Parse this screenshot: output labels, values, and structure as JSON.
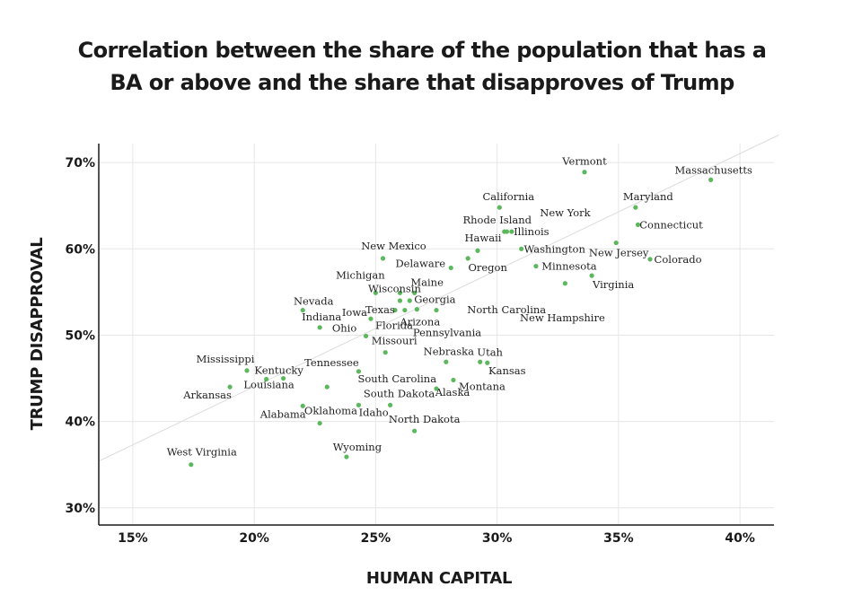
{
  "colors": {
    "point": "#5cb85c",
    "grid": "#e6e6e6",
    "trend": "#dcdcdc",
    "axis": "#1a1a1a"
  },
  "chart_data": {
    "type": "scatter",
    "title": [
      "Correlation between the share of the population that has a",
      "BA or above and the share that disapproves of Trump"
    ],
    "xlabel": "HUMAN CAPITAL",
    "ylabel": "TRUMP DISAPPROVAL",
    "xlim": [
      13.6,
      41.4
    ],
    "ylim": [
      28.0,
      72.2
    ],
    "xticks": [
      15,
      20,
      25,
      30,
      35,
      40
    ],
    "xtick_labels": [
      "15%",
      "20%",
      "25%",
      "30%",
      "35%",
      "40%"
    ],
    "yticks": [
      30,
      40,
      50,
      60,
      70
    ],
    "ytick_labels": [
      "30%",
      "40%",
      "50%",
      "60%",
      "70%"
    ],
    "trendline": [
      [
        13.6,
        35.4
      ],
      [
        41.6,
        73.2
      ]
    ],
    "points": [
      {
        "name": "Massachusetts",
        "x": 38.8,
        "y": 68.0
      },
      {
        "name": "Vermont",
        "x": 33.6,
        "y": 68.9
      },
      {
        "name": "Maryland",
        "x": 35.7,
        "y": 64.8
      },
      {
        "name": "Connecticut",
        "x": 35.8,
        "y": 62.8
      },
      {
        "name": "California",
        "x": 30.1,
        "y": 64.8
      },
      {
        "name": "New York",
        "x": 30.4,
        "y": 62.0
      },
      {
        "name": "Illinois",
        "x": 30.6,
        "y": 62.0
      },
      {
        "name": "Rhode Island",
        "x": 30.3,
        "y": 62.0
      },
      {
        "name": "Hawaii",
        "x": 29.2,
        "y": 59.8
      },
      {
        "name": "Washington",
        "x": 31.0,
        "y": 60.0
      },
      {
        "name": "New Jersey",
        "x": 34.9,
        "y": 60.7
      },
      {
        "name": "Colorado",
        "x": 36.3,
        "y": 58.8
      },
      {
        "name": "Oregon",
        "x": 28.8,
        "y": 58.9
      },
      {
        "name": "Delaware",
        "x": 28.1,
        "y": 57.8
      },
      {
        "name": "Minnesota",
        "x": 31.6,
        "y": 58.0
      },
      {
        "name": "Virginia",
        "x": 33.9,
        "y": 56.9
      },
      {
        "name": "New Hampshire",
        "x": 32.8,
        "y": 56.0
      },
      {
        "name": "New Mexico",
        "x": 25.3,
        "y": 58.9
      },
      {
        "name": "Michigan",
        "x": 25.0,
        "y": 54.9
      },
      {
        "name": "Wisconsin",
        "x": 26.0,
        "y": 54.9
      },
      {
        "name": "Maine",
        "x": 26.6,
        "y": 54.9
      },
      {
        "name": "Texas",
        "x": 26.0,
        "y": 54.0
      },
      {
        "name": "North Carolina",
        "x": 26.4,
        "y": 54.0
      },
      {
        "name": "Florida",
        "x": 25.8,
        "y": 52.9
      },
      {
        "name": "Arizona",
        "x": 26.2,
        "y": 52.9
      },
      {
        "name": "Georgia",
        "x": 26.7,
        "y": 53.0
      },
      {
        "name": "Pennsylvania",
        "x": 27.5,
        "y": 52.9
      },
      {
        "name": "Nevada",
        "x": 22.0,
        "y": 52.9
      },
      {
        "name": "Iowa",
        "x": 24.8,
        "y": 51.9
      },
      {
        "name": "Indiana",
        "x": 22.7,
        "y": 50.9
      },
      {
        "name": "Ohio",
        "x": 24.6,
        "y": 49.9
      },
      {
        "name": "Missouri",
        "x": 25.4,
        "y": 48.0
      },
      {
        "name": "Nebraska",
        "x": 27.9,
        "y": 46.9
      },
      {
        "name": "Utah",
        "x": 29.3,
        "y": 46.9
      },
      {
        "name": "Kansas",
        "x": 29.6,
        "y": 46.8
      },
      {
        "name": "Mississippi",
        "x": 19.7,
        "y": 45.9
      },
      {
        "name": "Kentucky",
        "x": 20.5,
        "y": 44.9
      },
      {
        "name": "Louisiana",
        "x": 21.2,
        "y": 45.0
      },
      {
        "name": "Tennessee",
        "x": 24.3,
        "y": 45.8
      },
      {
        "name": "South Carolina",
        "x": 23.0,
        "y": 44.0
      },
      {
        "name": "Montana",
        "x": 28.2,
        "y": 44.8
      },
      {
        "name": "Alaska",
        "x": 27.5,
        "y": 43.8
      },
      {
        "name": "Arkansas",
        "x": 19.0,
        "y": 44.0
      },
      {
        "name": "Alabama",
        "x": 22.0,
        "y": 41.8
      },
      {
        "name": "South Dakota",
        "x": 25.6,
        "y": 41.9
      },
      {
        "name": "Oklahoma",
        "x": 24.3,
        "y": 41.9
      },
      {
        "name": "Idaho",
        "x": 22.7,
        "y": 39.8
      },
      {
        "name": "North Dakota",
        "x": 26.6,
        "y": 38.9
      },
      {
        "name": "Wyoming",
        "x": 23.8,
        "y": 35.9
      },
      {
        "name": "West Virginia",
        "x": 17.4,
        "y": 35.0
      }
    ]
  }
}
